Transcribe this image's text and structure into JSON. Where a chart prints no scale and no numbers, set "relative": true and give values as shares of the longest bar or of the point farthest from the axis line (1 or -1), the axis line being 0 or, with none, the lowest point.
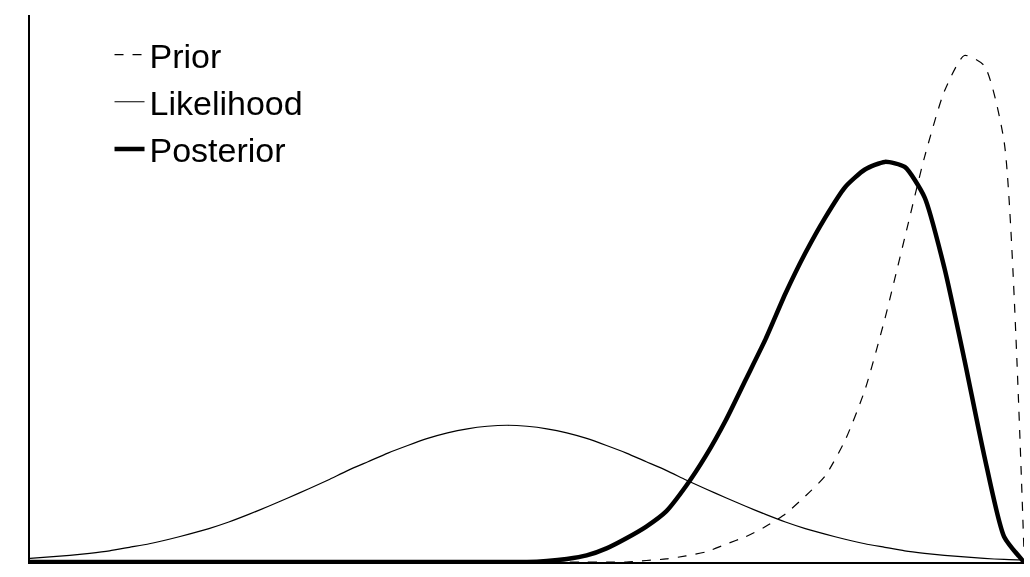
{
  "chart_data": {
    "type": "line",
    "relative": true,
    "legend": "top left",
    "marker": "none",
    "categories": [
      null,
      null,
      null,
      null,
      null,
      null,
      null,
      null,
      null,
      null,
      null,
      null,
      null,
      null,
      null,
      null,
      null,
      null,
      null,
      null,
      null,
      null,
      null,
      null,
      null,
      null,
      null,
      null,
      null,
      null,
      null,
      null,
      null,
      null,
      null,
      null,
      null,
      null,
      null,
      null,
      null,
      null,
      null,
      null,
      null,
      null,
      null,
      null,
      null,
      null,
      null
    ],
    "series": [
      {
        "name": "Prior",
        "color": "#000000",
        "line_style": "dashed",
        "values": [
          0,
          0,
          0,
          0,
          0,
          0,
          0,
          0,
          0,
          0,
          0,
          0,
          0,
          0,
          0,
          0,
          0,
          0,
          0,
          0,
          0,
          0,
          0,
          0,
          0,
          0,
          0,
          0,
          0,
          0,
          0,
          0.003,
          0.006,
          0.012,
          0.02,
          0.035,
          0.05,
          0.07,
          0.095,
          0.13,
          0.17,
          0.24,
          0.34,
          0.48,
          0.64,
          0.8,
          0.93,
          1,
          0.98,
          0.83,
          0.02
        ]
      },
      {
        "name": "Likelihood",
        "color": "#000000",
        "line_style": "solid",
        "values": [
          0.007,
          0.01,
          0.013,
          0.017,
          0.022,
          0.029,
          0.036,
          0.045,
          0.055,
          0.066,
          0.079,
          0.094,
          0.11,
          0.127,
          0.144,
          0.162,
          0.181,
          0.198,
          0.215,
          0.23,
          0.244,
          0.255,
          0.263,
          0.268,
          0.27,
          0.268,
          0.263,
          0.255,
          0.244,
          0.23,
          0.215,
          0.198,
          0.181,
          0.162,
          0.144,
          0.127,
          0.11,
          0.094,
          0.079,
          0.066,
          0.055,
          0.045,
          0.036,
          0.029,
          0.022,
          0.017,
          0.013,
          0.01,
          0.007,
          0.005,
          0.004
        ]
      },
      {
        "name": "Posterior",
        "color": "#000000",
        "line_style": "solid",
        "values": [
          0,
          0,
          0,
          0,
          0,
          0,
          0,
          0,
          0,
          0,
          0,
          0,
          0,
          0,
          0,
          0,
          0,
          0,
          0,
          0,
          0,
          0,
          0,
          0,
          0,
          0,
          0.002,
          0.006,
          0.013,
          0.027,
          0.047,
          0.07,
          0.1,
          0.15,
          0.21,
          0.28,
          0.36,
          0.44,
          0.53,
          0.61,
          0.68,
          0.74,
          0.775,
          0.79,
          0.78,
          0.72,
          0.58,
          0.4,
          0.21,
          0.05,
          0
        ]
      }
    ]
  }
}
